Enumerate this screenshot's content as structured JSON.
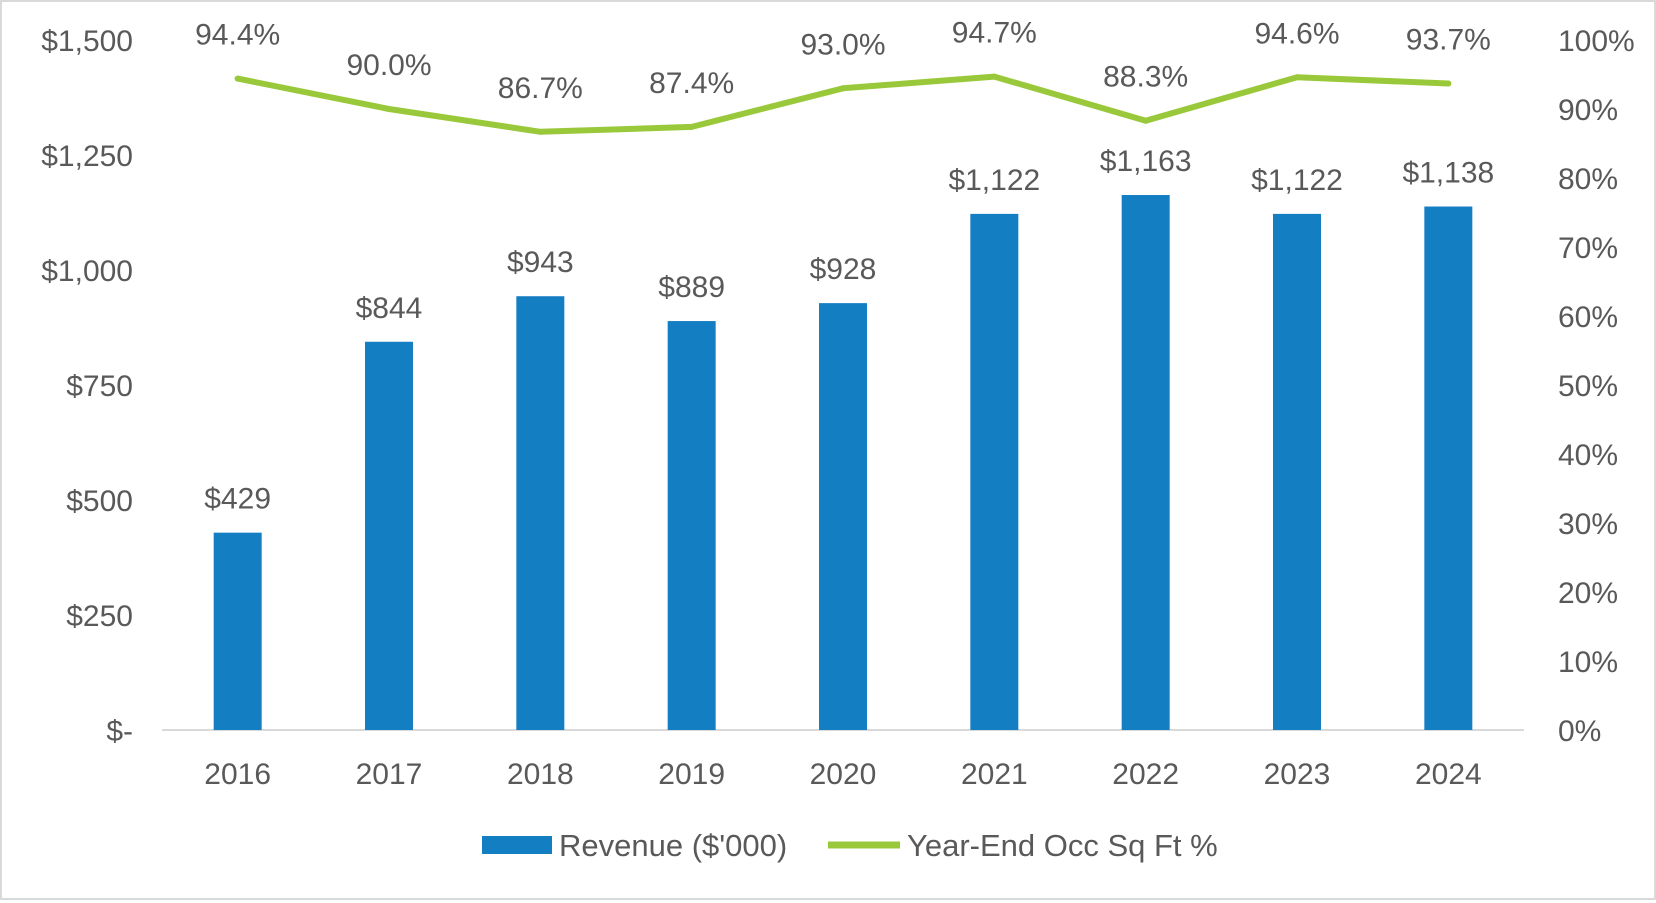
{
  "chart_data": {
    "type": "bar+line",
    "categories": [
      "2016",
      "2017",
      "2018",
      "2019",
      "2020",
      "2021",
      "2022",
      "2023",
      "2024"
    ],
    "series": [
      {
        "name": "Revenue ($'000)",
        "type": "bar",
        "axis": "left",
        "color": "#147EC3",
        "values": [
          429,
          844,
          943,
          889,
          928,
          1122,
          1163,
          1122,
          1138
        ],
        "labels": [
          "$429",
          "$844",
          "$943",
          "$889",
          "$928",
          "$1,122",
          "$1,163",
          "$1,122",
          "$1,138"
        ]
      },
      {
        "name": "Year-End Occ Sq Ft %",
        "type": "line",
        "axis": "right",
        "color": "#99C93B",
        "values": [
          94.4,
          90.0,
          86.7,
          87.4,
          93.0,
          94.7,
          88.3,
          94.6,
          93.7
        ],
        "labels": [
          "94.4%",
          "90.0%",
          "86.7%",
          "87.4%",
          "93.0%",
          "94.7%",
          "88.3%",
          "94.6%",
          "93.7%"
        ]
      }
    ],
    "y_left": {
      "range": [
        0,
        1500
      ],
      "ticks": [
        0,
        250,
        500,
        750,
        1000,
        1250,
        1500
      ],
      "tick_labels": [
        "$-",
        "$250",
        "$500",
        "$750",
        "$1,000",
        "$1,250",
        "$1,500"
      ]
    },
    "y_right": {
      "range": [
        0,
        100
      ],
      "ticks": [
        0,
        10,
        20,
        30,
        40,
        50,
        60,
        70,
        80,
        90,
        100
      ],
      "tick_labels": [
        "0%",
        "10%",
        "20%",
        "30%",
        "40%",
        "50%",
        "60%",
        "70%",
        "80%",
        "90%",
        "100%"
      ]
    },
    "title": "",
    "grid": false,
    "legend_position": "bottom"
  }
}
